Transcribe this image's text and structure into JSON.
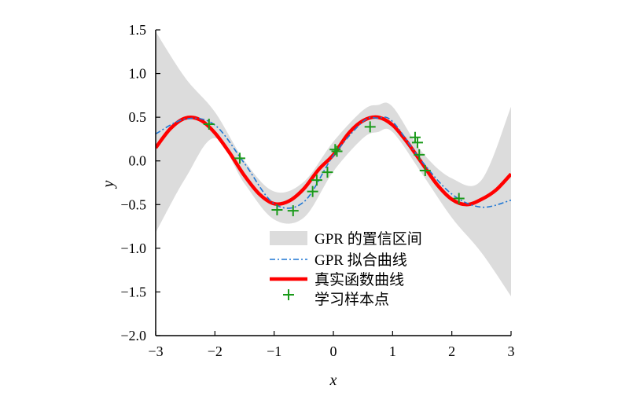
{
  "chart_data": {
    "type": "line",
    "xlabel": "x",
    "ylabel": "y",
    "xlim": [
      -3,
      3
    ],
    "ylim": [
      -2.0,
      1.5
    ],
    "xticks": [
      -3,
      -2,
      -1,
      0,
      1,
      2,
      3
    ],
    "xtick_labels": [
      "−3",
      "−2",
      "−1",
      "0",
      "1",
      "2",
      "3"
    ],
    "yticks": [
      1.5,
      1.0,
      0.5,
      0.0,
      -0.5,
      -1.0,
      -1.5,
      -2.0
    ],
    "ytick_labels": [
      "1.5",
      "1.0",
      "0.5",
      "0.0",
      "−0.5",
      "−1.0",
      "−1.5",
      "−2.0"
    ],
    "legend_position": "lower-center",
    "series": [
      {
        "name": "GPR 的置信区间",
        "kind": "band",
        "color": "#dcdcdc",
        "x": [
          -3,
          -2.5,
          -2,
          -1.5,
          -1,
          -0.5,
          0,
          0.5,
          0.75,
          1,
          1.5,
          2,
          2.5,
          3
        ],
        "upper": [
          1.48,
          0.95,
          0.56,
          0.0,
          -0.35,
          -0.24,
          0.22,
          0.58,
          0.64,
          0.62,
          0.1,
          -0.2,
          -0.22,
          0.62
        ],
        "lower": [
          -0.82,
          -0.2,
          0.26,
          -0.26,
          -0.67,
          -0.65,
          -0.12,
          0.26,
          0.33,
          0.33,
          -0.15,
          -0.65,
          -1.05,
          -1.55
        ]
      },
      {
        "name": "GPR 拟合曲线",
        "kind": "line",
        "style": "dash-dot",
        "color": "#1f77d4",
        "x": [
          -3,
          -2.5,
          -2,
          -1.5,
          -1,
          -0.5,
          0,
          0.5,
          0.75,
          1,
          1.5,
          2,
          2.5,
          3
        ],
        "y": [
          0.31,
          0.48,
          0.41,
          -0.03,
          -0.49,
          -0.47,
          0.06,
          0.45,
          0.49,
          0.45,
          -0.01,
          -0.38,
          -0.53,
          -0.45
        ]
      },
      {
        "name": "真实函数曲线",
        "kind": "line",
        "style": "solid",
        "color": "#ff0000",
        "x": [
          -3,
          -2.75,
          -2.5,
          -2.25,
          -2,
          -1.75,
          -1.5,
          -1.25,
          -1,
          -0.75,
          -0.5,
          -0.25,
          0,
          0.25,
          0.5,
          0.75,
          1,
          1.25,
          1.5,
          1.75,
          2,
          2.25,
          2.5,
          2.75,
          3
        ],
        "y": [
          0.15,
          0.37,
          0.49,
          0.47,
          0.32,
          0.09,
          -0.17,
          -0.38,
          -0.49,
          -0.46,
          -0.32,
          -0.1,
          0.07,
          0.31,
          0.46,
          0.5,
          0.41,
          0.21,
          -0.03,
          -0.27,
          -0.44,
          -0.5,
          -0.44,
          -0.33,
          -0.15
        ]
      },
      {
        "name": "学习样本点",
        "kind": "scatter",
        "marker": "+",
        "color": "#1a9a1a",
        "x": [
          -2.1,
          -1.58,
          -0.95,
          -0.68,
          -0.35,
          -0.28,
          -0.1,
          0.03,
          0.06,
          0.62,
          1.38,
          1.42,
          1.45,
          1.55,
          2.12
        ],
        "y": [
          0.42,
          0.03,
          -0.56,
          -0.57,
          -0.35,
          -0.22,
          -0.13,
          0.13,
          0.11,
          0.39,
          0.27,
          0.21,
          0.07,
          -0.11,
          -0.43
        ]
      }
    ]
  }
}
